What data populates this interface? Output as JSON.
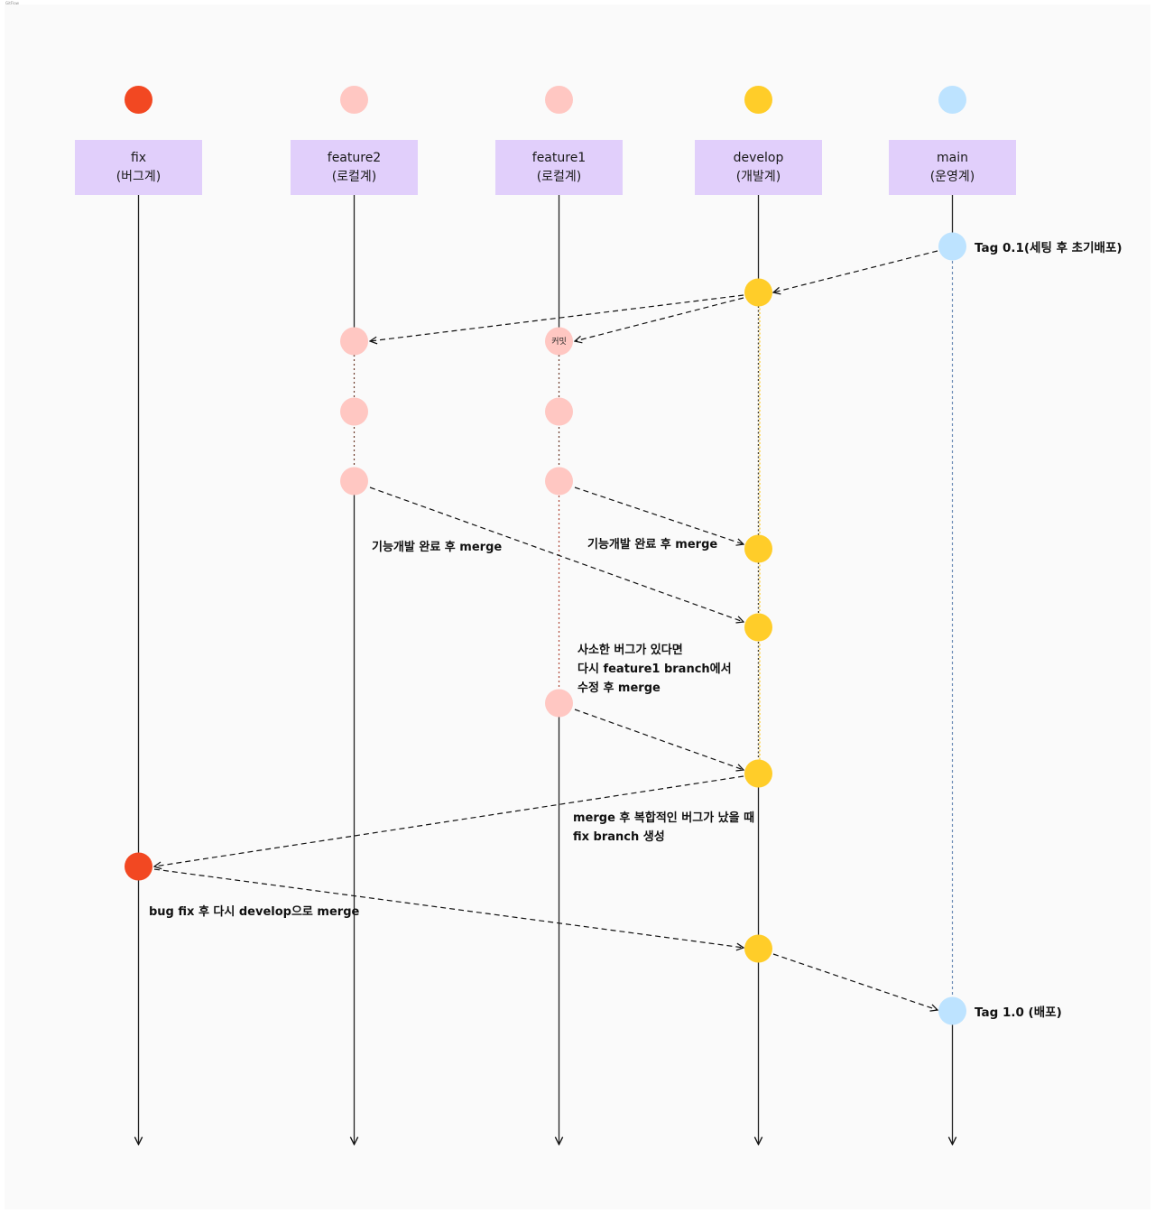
{
  "frame_label": "GitFlow",
  "colors": {
    "fix": "#f24822",
    "feature": "#ffc7c2",
    "develop": "#ffcd29",
    "main": "#bde3ff",
    "lane_box": "#e1cffb",
    "arrow": "#111111"
  },
  "lanes": [
    {
      "id": "fix",
      "name": "fix",
      "sub": "(버그계)"
    },
    {
      "id": "feature2",
      "name": "feature2",
      "sub": "(로컬계)"
    },
    {
      "id": "feature1",
      "name": "feature1",
      "sub": "(로컬계)"
    },
    {
      "id": "develop",
      "name": "develop",
      "sub": "(개발계)"
    },
    {
      "id": "main",
      "name": "main",
      "sub": "(운영계)"
    }
  ],
  "tags": {
    "tag_01": "Tag 0.1(세팅 후 초기배포)",
    "tag_10": "Tag 1.0 (배포)"
  },
  "commit_label": "커밋",
  "notes": {
    "feature2_merge": "기능개발 완료 후 merge",
    "feature1_merge": "기능개발 완료 후 merge",
    "minor_bug": [
      "사소한 버그가 있다면",
      "다시 feature1 branch에서",
      "수정 후 merge"
    ],
    "complex_bug": [
      "merge 후 복합적인 버그가 났을 때",
      "fix branch 생성"
    ],
    "bug_fix": "bug fix 후 다시 develop으로 merge"
  }
}
